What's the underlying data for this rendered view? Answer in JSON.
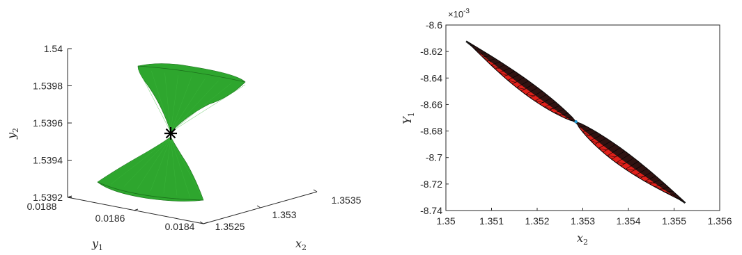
{
  "chart_data": [
    {
      "type": "surface3d",
      "description_free": true,
      "axes": {
        "x": {
          "label_main": "x",
          "label_sub": "2",
          "ticks": [
            "1.3525",
            "1.353",
            "1.3535"
          ]
        },
        "y": {
          "label_main": "y",
          "label_sub": "1",
          "ticks": [
            "0.0184",
            "0.0186",
            "0.0188"
          ]
        },
        "z": {
          "label_main": "y",
          "label_sub": "2",
          "ticks": [
            "1.5392",
            "1.5394",
            "1.5396",
            "1.5398",
            "1.54"
          ],
          "range": [
            1.5392,
            1.54
          ]
        }
      },
      "surface_color": "#2ea62e",
      "surface_dark": "#1f7f1f",
      "apex_marker": {
        "symbol": "asterisk",
        "z": 1.53955,
        "color": "#000000"
      }
    },
    {
      "type": "surface2d",
      "axes": {
        "x": {
          "label_main": "x",
          "label_sub": "2",
          "range": [
            1.35,
            1.356
          ],
          "ticks": [
            "1.35",
            "1.351",
            "1.352",
            "1.353",
            "1.354",
            "1.355",
            "1.356"
          ]
        },
        "y": {
          "label_main": "Y",
          "label_sub": "1",
          "range": [
            -8.74,
            -8.6
          ],
          "ticks": [
            "-8.6",
            "-8.62",
            "-8.64",
            "-8.66",
            "-8.68",
            "-8.7",
            "-8.72",
            "-8.74"
          ],
          "exponent_base": "×10",
          "exponent_power": "-3"
        }
      },
      "center_point": {
        "x": 1.35285,
        "y": -8.673,
        "color": "#1f9bd6"
      },
      "upper_lobe": {
        "x_start": 1.35045,
        "y_start": -8.612,
        "x_end": 1.35285,
        "y_end": -8.673
      },
      "lower_lobe": {
        "x_start": 1.35285,
        "y_start": -8.673,
        "x_end": 1.35525,
        "y_end": -8.734
      },
      "fill_color": "#e0201a",
      "edge_color": "#000000"
    }
  ]
}
